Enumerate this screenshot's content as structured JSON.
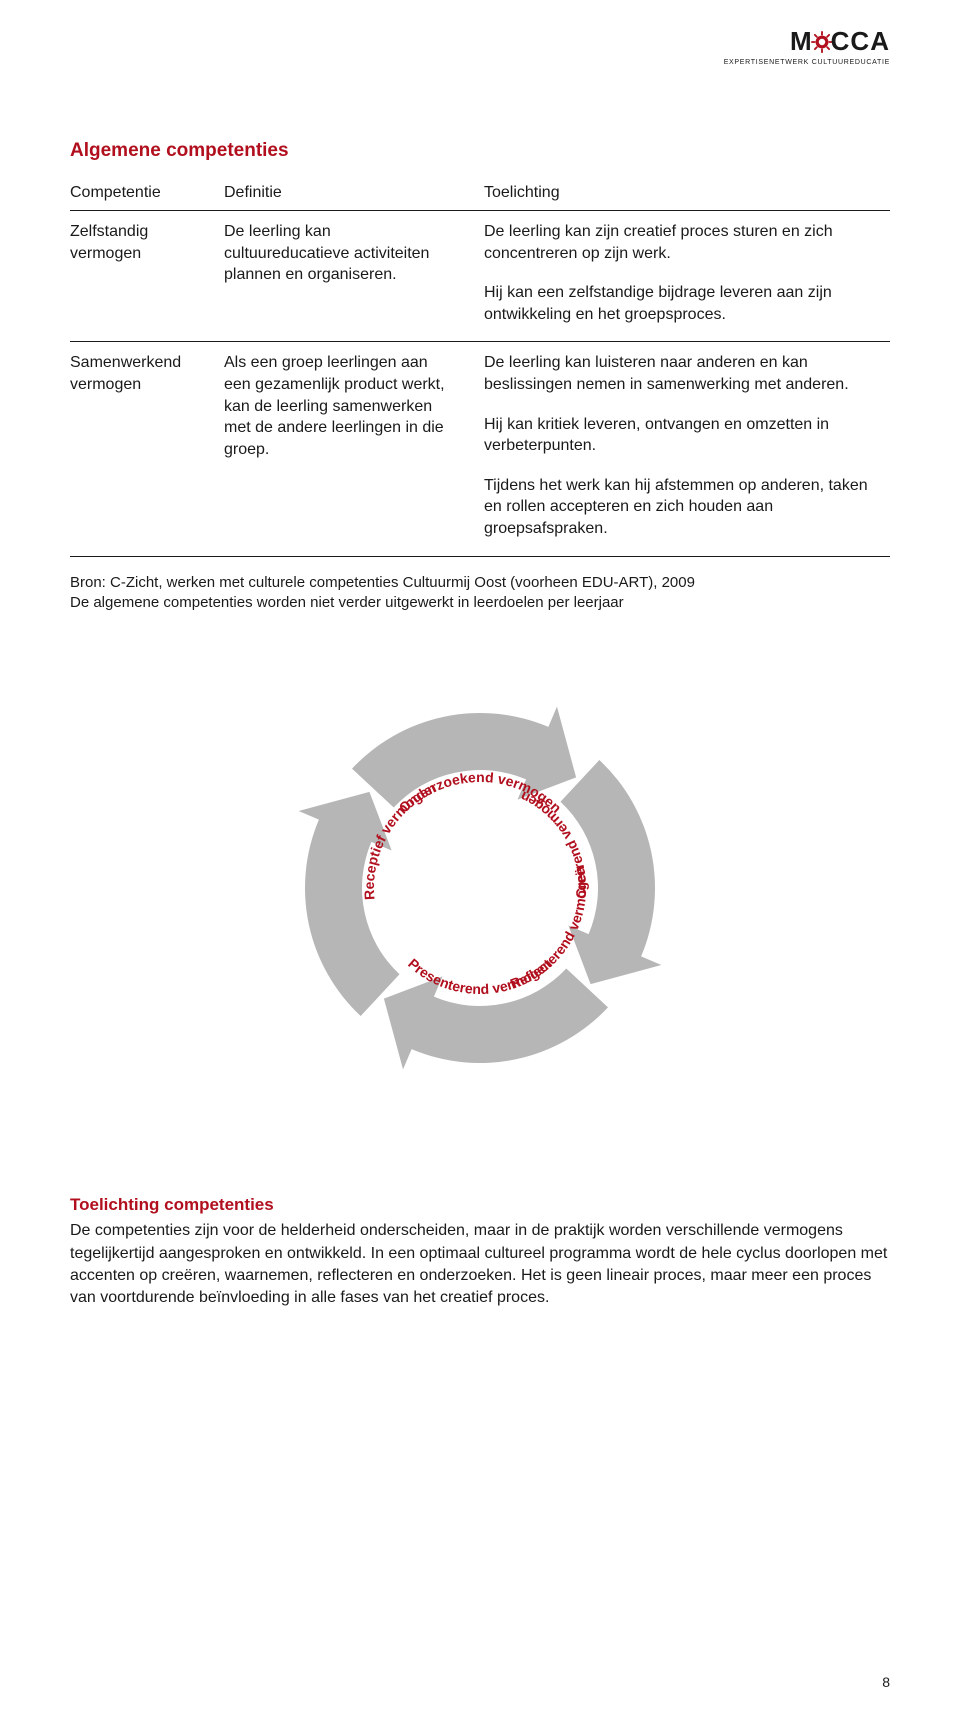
{
  "logo": {
    "text_before": "M",
    "text_after": "CCA",
    "cog_color": "#b10f1e",
    "subtitle": "EXPERTISENETWERK CULTUUREDUCATIE"
  },
  "page_title": "Algemene competenties",
  "accent_color": "#b10f1e",
  "table": {
    "headers": [
      "Competentie",
      "Definitie",
      "Toelichting"
    ],
    "rows": [
      {
        "competentie": "Zelfstandig vermogen",
        "definitie": "De leerling kan cultuureducatieve activiteiten plannen en organiseren.",
        "toelichting": [
          "De leerling kan zijn creatief proces sturen en zich concentreren op zijn werk.",
          "Hij kan een zelfstandige bijdrage leveren aan zijn ontwikkeling en het groepsproces."
        ]
      },
      {
        "competentie": "Samenwerkend vermogen",
        "definitie": "Als een groep leerlingen aan een gezamenlijk product werkt, kan de leerling samenwerken met de andere leerlingen in die groep.",
        "toelichting": [
          "De leerling kan luisteren naar anderen en kan beslissingen nemen in samenwerking met anderen.",
          "Hij kan kritiek leveren, ontvangen en omzetten in verbeterpunten.",
          "Tijdens het werk kan hij afstemmen op anderen, taken en rollen accepteren en zich houden aan groepsafspraken."
        ]
      }
    ]
  },
  "source_note": [
    "Bron: C-Zicht, werken met culturele competenties Cultuurmij Oost (voorheen EDU-ART), 2009",
    "De algemene competenties worden niet verder uitgewerkt in leerdoelen per leerjaar"
  ],
  "diagram": {
    "labels": [
      {
        "text": "Receptief vermogen",
        "angle": -60
      },
      {
        "text": "Onderzoekend vermogen",
        "angle": 0
      },
      {
        "text": "Creërend vermogen",
        "angle": 60
      },
      {
        "text": "Reflecterend vermogen",
        "angle": 120
      },
      {
        "text": "Presenterend vermogen",
        "angle": 180
      }
    ],
    "arrow_color": "#b6b6b6",
    "ring_outer": 175,
    "ring_inner": 118,
    "label_radius": 106,
    "size": 430
  },
  "footer": {
    "title": "Toelichting competenties",
    "body": "De competenties zijn voor de helderheid onderscheiden, maar in de praktijk worden verschillende vermogens tegelijkertijd aangesproken en ontwikkeld.  In een optimaal cultureel programma wordt de hele cyclus doorlopen met accenten op creëren, waarnemen, reflecteren en  onderzoeken. Het is geen lineair proces, maar meer een proces van voortdurende beïnvloeding in alle fases van het creatief  proces."
  },
  "page_number": "8"
}
